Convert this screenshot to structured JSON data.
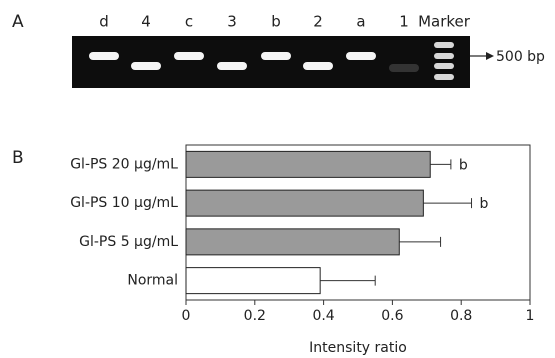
{
  "gel": {
    "panel_label": "A",
    "lanes": [
      "d",
      "4",
      "c",
      "3",
      "b",
      "2",
      "a",
      "1",
      "Marker"
    ],
    "marker_label": "500 bp"
  },
  "chart_data": {
    "type": "hbar",
    "panel_label": "B",
    "xlabel": "Intensity ratio",
    "categories": [
      "Gl-PS 20 μg/mL",
      "Gl-PS 10 μg/mL",
      "Gl-PS 5 μg/mL",
      "Normal"
    ],
    "values": [
      0.71,
      0.69,
      0.62,
      0.39
    ],
    "errors": [
      0.06,
      0.14,
      0.12,
      0.16
    ],
    "value_annotations": [
      "b",
      "b",
      null,
      null
    ],
    "colors": [
      "#9a9a9a",
      "#9a9a9a",
      "#9a9a9a",
      "#ffffff"
    ],
    "xlim": [
      0,
      1
    ],
    "xticks": [
      0,
      0.2,
      0.4,
      0.6,
      0.8,
      1
    ]
  }
}
